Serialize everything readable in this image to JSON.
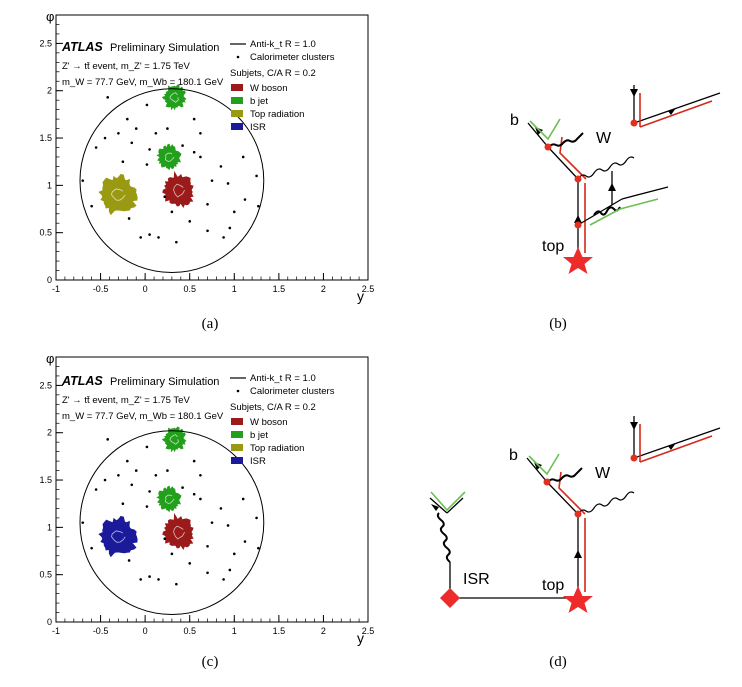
{
  "captions": [
    "(a)",
    "(b)",
    "(c)",
    "(d)"
  ],
  "plot": {
    "experiment": "ATLAS",
    "status": "Preliminary Simulation",
    "process": "Z' → tt̄ event, m_Z' = 1.75 TeV",
    "masses": "m_W = 77.7 GeV, m_Wb = 180.1 GeV",
    "legend_jet": "Anti-k_t R = 1.0",
    "legend_clusters": "Calorimeter clusters",
    "subjets_title": "Subjets, C/A R = 0.2",
    "y_axis_title": "φ",
    "x_axis_title": "y"
  },
  "chart_data": [
    {
      "type": "scatter",
      "panel": "(a)",
      "xlabel": "y",
      "ylabel": "φ",
      "xlim": [
        -1,
        2.5
      ],
      "ylim": [
        0,
        2.8
      ],
      "x_ticks": [
        "-1",
        "-0.5",
        "0",
        "0.5",
        "1",
        "1.5",
        "2",
        "2.5"
      ],
      "y_ticks": [
        "0",
        "0.5",
        "1",
        "1.5",
        "2",
        "2.5"
      ],
      "jet_circle": {
        "center_y": 0.3,
        "center_phi": 1.05,
        "radius": 1.0
      },
      "subjets": [
        {
          "label": "W boson",
          "color": "#9b1a1a",
          "regions": [
            {
              "y": 0.38,
              "phi": 0.95,
              "size": 0.17
            }
          ]
        },
        {
          "label": "b jet",
          "color": "#22a01c",
          "regions": [
            {
              "y": 0.33,
              "phi": 1.93,
              "size": 0.12
            },
            {
              "y": 0.27,
              "phi": 1.3,
              "size": 0.12
            }
          ]
        },
        {
          "label": "Top radiation",
          "color": "#9a9a12",
          "regions": [
            {
              "y": -0.3,
              "phi": 0.9,
              "size": 0.2
            }
          ]
        },
        {
          "label": "ISR",
          "color": "#1a1a9a",
          "regions": []
        }
      ],
      "clusters": [
        [
          -0.42,
          1.93
        ],
        [
          -0.2,
          1.7
        ],
        [
          0.02,
          1.85
        ],
        [
          0.25,
          1.6
        ],
        [
          0.05,
          1.38
        ],
        [
          -0.15,
          1.45
        ],
        [
          -0.45,
          1.5
        ],
        [
          -0.3,
          1.55
        ],
        [
          0.55,
          1.7
        ],
        [
          0.62,
          1.55
        ],
        [
          -0.55,
          1.4
        ],
        [
          -0.25,
          1.25
        ],
        [
          0.02,
          1.22
        ],
        [
          0.62,
          1.3
        ],
        [
          0.85,
          1.2
        ],
        [
          0.75,
          1.05
        ],
        [
          0.93,
          1.02
        ],
        [
          1.25,
          1.1
        ],
        [
          1.27,
          0.78
        ],
        [
          1.12,
          0.85
        ],
        [
          0.95,
          0.55
        ],
        [
          0.7,
          0.52
        ],
        [
          0.5,
          0.62
        ],
        [
          0.35,
          0.4
        ],
        [
          0.15,
          0.45
        ],
        [
          0.05,
          0.48
        ],
        [
          -0.05,
          0.45
        ],
        [
          -0.18,
          0.65
        ],
        [
          1.0,
          0.72
        ],
        [
          0.88,
          0.45
        ],
        [
          0.3,
          0.72
        ],
        [
          -0.7,
          1.05
        ],
        [
          -0.6,
          0.78
        ],
        [
          0.55,
          1.35
        ],
        [
          0.42,
          1.42
        ],
        [
          0.12,
          1.55
        ],
        [
          -0.1,
          1.6
        ],
        [
          0.7,
          0.8
        ],
        [
          0.22,
          0.88
        ],
        [
          1.1,
          1.3
        ]
      ]
    },
    {
      "type": "scatter",
      "panel": "(c)",
      "xlabel": "y",
      "ylabel": "φ",
      "xlim": [
        -1,
        2.5
      ],
      "ylim": [
        0,
        2.8
      ],
      "x_ticks": [
        "-1",
        "-0.5",
        "0",
        "0.5",
        "1",
        "1.5",
        "2",
        "2.5"
      ],
      "y_ticks": [
        "0",
        "0.5",
        "1",
        "1.5",
        "2",
        "2.5"
      ],
      "jet_circle": {
        "center_y": 0.3,
        "center_phi": 1.05,
        "radius": 1.0
      },
      "subjets": [
        {
          "label": "W boson",
          "color": "#9b1a1a",
          "regions": [
            {
              "y": 0.38,
              "phi": 0.95,
              "size": 0.17
            }
          ]
        },
        {
          "label": "b jet",
          "color": "#22a01c",
          "regions": [
            {
              "y": 0.33,
              "phi": 1.93,
              "size": 0.12
            },
            {
              "y": 0.27,
              "phi": 1.3,
              "size": 0.12
            }
          ]
        },
        {
          "label": "Top radiation",
          "color": "#9a9a12",
          "regions": []
        },
        {
          "label": "ISR",
          "color": "#1a1a9a",
          "regions": [
            {
              "y": -0.3,
              "phi": 0.9,
              "size": 0.2
            }
          ]
        }
      ],
      "clusters": [
        [
          -0.42,
          1.93
        ],
        [
          -0.2,
          1.7
        ],
        [
          0.02,
          1.85
        ],
        [
          0.25,
          1.6
        ],
        [
          0.05,
          1.38
        ],
        [
          -0.15,
          1.45
        ],
        [
          -0.45,
          1.5
        ],
        [
          -0.3,
          1.55
        ],
        [
          0.55,
          1.7
        ],
        [
          0.62,
          1.55
        ],
        [
          -0.55,
          1.4
        ],
        [
          -0.25,
          1.25
        ],
        [
          0.02,
          1.22
        ],
        [
          0.62,
          1.3
        ],
        [
          0.85,
          1.2
        ],
        [
          0.75,
          1.05
        ],
        [
          0.93,
          1.02
        ],
        [
          1.25,
          1.1
        ],
        [
          1.27,
          0.78
        ],
        [
          1.12,
          0.85
        ],
        [
          0.95,
          0.55
        ],
        [
          0.7,
          0.52
        ],
        [
          0.5,
          0.62
        ],
        [
          0.35,
          0.4
        ],
        [
          0.15,
          0.45
        ],
        [
          0.05,
          0.48
        ],
        [
          -0.05,
          0.45
        ],
        [
          -0.18,
          0.65
        ],
        [
          1.0,
          0.72
        ],
        [
          0.88,
          0.45
        ],
        [
          0.3,
          0.72
        ],
        [
          -0.7,
          1.05
        ],
        [
          -0.6,
          0.78
        ],
        [
          0.55,
          1.35
        ],
        [
          0.42,
          1.42
        ],
        [
          0.12,
          1.55
        ],
        [
          -0.1,
          1.6
        ],
        [
          0.7,
          0.8
        ],
        [
          0.22,
          0.88
        ],
        [
          1.1,
          1.3
        ]
      ]
    }
  ],
  "diagram_b": {
    "labels": {
      "b": "b",
      "w": "W",
      "top": "top"
    }
  },
  "diagram_d": {
    "labels": {
      "b": "b",
      "w": "W",
      "top": "top",
      "isr": "ISR"
    }
  },
  "colors": {
    "star": "#ee2b2b",
    "vertex": "#e03020",
    "red_line": "#d42a1a",
    "green_line": "#6bbf55"
  }
}
